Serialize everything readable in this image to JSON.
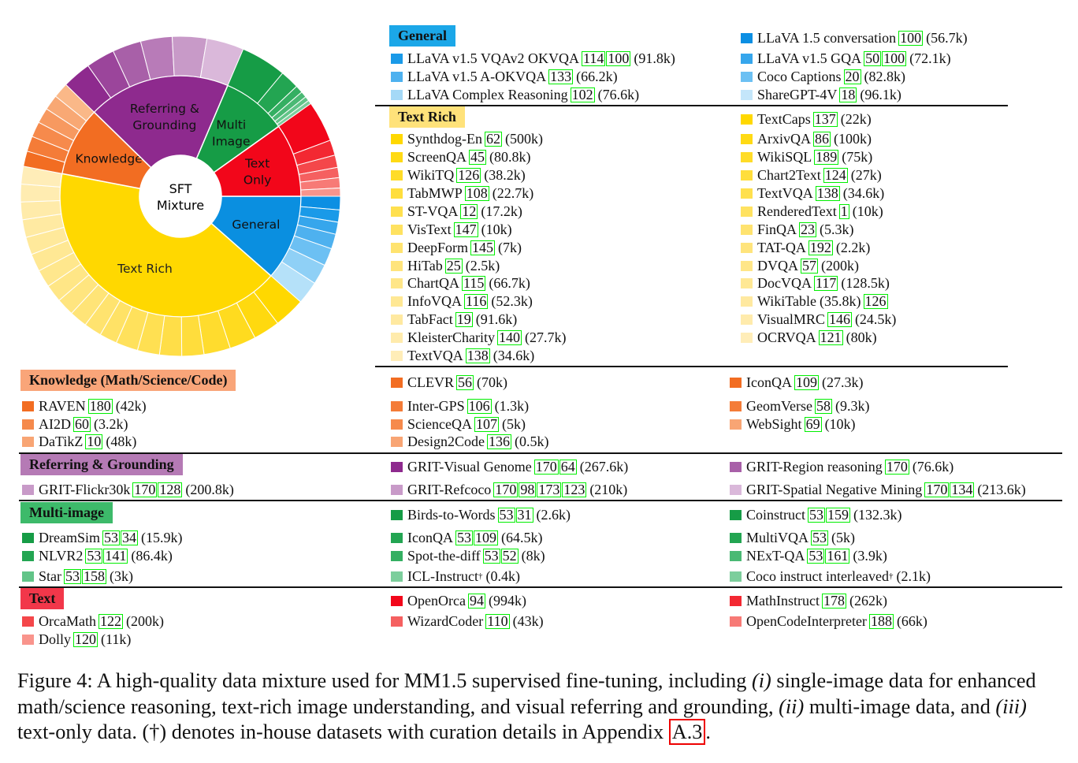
{
  "chart_data": {
    "type": "sunburst",
    "center_label": [
      "SFT",
      "Mixture"
    ],
    "inner": [
      {
        "name": "General",
        "label": [
          "General"
        ],
        "value": 10.5,
        "color": "#0a8fe0"
      },
      {
        "name": "Text Rich",
        "label": [
          "Text Rich"
        ],
        "value": 38,
        "color": "#ffd800"
      },
      {
        "name": "Knowledge",
        "label": [
          "Knowledge"
        ],
        "value": 8.5,
        "color": "#f26d22"
      },
      {
        "name": "Referring & Grounding",
        "label": [
          "Referring &",
          "Grounding"
        ],
        "value": 17.5,
        "color": "#8e2a8e"
      },
      {
        "name": "Multi Image",
        "label": [
          "Multi",
          "Image"
        ],
        "value": 8,
        "color": "#169c46"
      },
      {
        "name": "Text Only",
        "label": [
          "Text",
          "Only"
        ],
        "value": 9,
        "color": "#f2061a"
      }
    ],
    "outer": [
      {
        "parent": "General",
        "slices": [
          {
            "v": 10,
            "c": "#0c8fe3"
          },
          {
            "v": 9,
            "c": "#1a9ae8"
          },
          {
            "v": 9,
            "c": "#36a6ec"
          },
          {
            "v": 11,
            "c": "#4eb1ef"
          },
          {
            "v": 13,
            "c": "#6cc0f3"
          },
          {
            "v": 15,
            "c": "#8fd0f6"
          },
          {
            "v": 17,
            "c": "#b5e1f9"
          }
        ]
      },
      {
        "parent": "Text Rich",
        "slices": [
          {
            "v": 3.5,
            "c": "#ffd800"
          },
          {
            "v": 3,
            "c": "#ffd90f"
          },
          {
            "v": 3,
            "c": "#ffdb1f"
          },
          {
            "v": 3,
            "c": "#ffdc2e"
          },
          {
            "v": 2.5,
            "c": "#ffdd3c"
          },
          {
            "v": 2.5,
            "c": "#ffde48"
          },
          {
            "v": 2.5,
            "c": "#ffe052"
          },
          {
            "v": 2.5,
            "c": "#ffe15c"
          },
          {
            "v": 2,
            "c": "#ffe266"
          },
          {
            "v": 2,
            "c": "#ffe36f"
          },
          {
            "v": 2,
            "c": "#ffe477"
          },
          {
            "v": 2,
            "c": "#ffe57f"
          },
          {
            "v": 2,
            "c": "#ffe686"
          },
          {
            "v": 2,
            "c": "#ffe78d"
          },
          {
            "v": 2,
            "c": "#ffe894"
          },
          {
            "v": 2,
            "c": "#ffe99b"
          },
          {
            "v": 2,
            "c": "#ffeaa2"
          },
          {
            "v": 2,
            "c": "#ffebaa"
          },
          {
            "v": 2,
            "c": "#ffecb1"
          },
          {
            "v": 2,
            "c": "#ffedb8"
          }
        ]
      },
      {
        "parent": "Knowledge",
        "slices": [
          {
            "v": 1,
            "c": "#f26d22"
          },
          {
            "v": 1,
            "c": "#f47c38"
          },
          {
            "v": 1,
            "c": "#f68a4c"
          },
          {
            "v": 1,
            "c": "#f79960"
          },
          {
            "v": 1,
            "c": "#f8a874"
          },
          {
            "v": 1,
            "c": "#fab888"
          }
        ]
      },
      {
        "parent": "Referring & Grounding",
        "slices": [
          {
            "v": 1,
            "c": "#8e2a8e"
          },
          {
            "v": 1,
            "c": "#9b459b"
          },
          {
            "v": 1,
            "c": "#a860a8"
          },
          {
            "v": 1.1,
            "c": "#b87bb8"
          },
          {
            "v": 1.2,
            "c": "#c89ac8"
          },
          {
            "v": 1.3,
            "c": "#dab8da"
          }
        ]
      },
      {
        "parent": "Multi Image",
        "slices": [
          {
            "v": 6,
            "c": "#169c46"
          },
          {
            "v": 2.5,
            "c": "#23a552"
          },
          {
            "v": 1,
            "c": "#34af62"
          },
          {
            "v": 0.8,
            "c": "#4ab974"
          },
          {
            "v": 0.6,
            "c": "#62c488"
          },
          {
            "v": 0.5,
            "c": "#7cce9c"
          }
        ]
      },
      {
        "parent": "Text Only",
        "slices": [
          {
            "v": 4,
            "c": "#f2061a"
          },
          {
            "v": 1.5,
            "c": "#f32832"
          },
          {
            "v": 1.2,
            "c": "#f4474a"
          },
          {
            "v": 1,
            "c": "#f56060"
          },
          {
            "v": 1,
            "c": "#f77a76"
          },
          {
            "v": 0.8,
            "c": "#f9948c"
          }
        ]
      }
    ]
  },
  "sections": {
    "general": {
      "header": "General",
      "header_color": "#1ba7e8",
      "items": [
        {
          "sw": "#1a9ae8",
          "name": "LLaVA v1.5 VQAv2 OKVQA",
          "cites": [
            "114",
            "100"
          ],
          "size": "(91.8k)"
        },
        {
          "sw": "#4eb1ef",
          "name": "LLaVA v1.5 A-OKVQA",
          "cites": [
            "133"
          ],
          "size": "(66.2k)"
        },
        {
          "sw": "#a5d9f7",
          "name": "LLaVA Complex Reasoning",
          "cites": [
            "102"
          ],
          "size": "(76.6k)"
        },
        {
          "sw": "#0c8fe3",
          "name": "LLaVA 1.5 conversation",
          "cites": [
            "100"
          ],
          "size": "(56.7k)"
        },
        {
          "sw": "#36a6ec",
          "name": "LLaVA v1.5 GQA",
          "cites": [
            "50",
            "100"
          ],
          "size": "(72.1k)"
        },
        {
          "sw": "#6cc0f3",
          "name": "Coco Captions",
          "cites": [
            "20"
          ],
          "size": "(82.8k)"
        },
        {
          "sw": "#c4e6fa",
          "name": "ShareGPT-4V",
          "cites": [
            "18"
          ],
          "size": "(96.1k)"
        }
      ]
    },
    "text_rich": {
      "header": "Text Rich",
      "header_color": "#ffe27a",
      "items": [
        {
          "sw": "#ffd800",
          "name": "Synthdog-En",
          "cites": [
            "62"
          ],
          "size": "(500k)"
        },
        {
          "sw": "#ffda14",
          "name": "ScreenQA",
          "cites": [
            "45"
          ],
          "size": "(80.8k)"
        },
        {
          "sw": "#ffdc28",
          "name": "WikiTQ",
          "cites": [
            "126"
          ],
          "size": "(38.2k)"
        },
        {
          "sw": "#ffde3c",
          "name": "TabMWP",
          "cites": [
            "108"
          ],
          "size": "(22.7k)"
        },
        {
          "sw": "#ffe04e",
          "name": "ST-VQA",
          "cites": [
            "12"
          ],
          "size": "(17.2k)"
        },
        {
          "sw": "#ffe260",
          "name": "VisText",
          "cites": [
            "147"
          ],
          "size": "(10k)"
        },
        {
          "sw": "#ffe36f",
          "name": "DeepForm",
          "cites": [
            "145"
          ],
          "size": "(7k)"
        },
        {
          "sw": "#ffe47c",
          "name": "HiTab",
          "cites": [
            "25"
          ],
          "size": "(2.5k)"
        },
        {
          "sw": "#ffe688",
          "name": "ChartQA",
          "cites": [
            "115"
          ],
          "size": "(66.7k)"
        },
        {
          "sw": "#ffe894",
          "name": "InfoVQA",
          "cites": [
            "116"
          ],
          "size": "(52.3k)"
        },
        {
          "sw": "#ffe9a0",
          "name": "TabFact",
          "cites": [
            "19"
          ],
          "size": "(91.6k)"
        },
        {
          "sw": "#ffebac",
          "name": "KleisterCharity",
          "cites": [
            "140"
          ],
          "size": "(27.7k)"
        },
        {
          "sw": "#ffedb8",
          "name": "TextVQA",
          "cites": [
            "138"
          ],
          "size": "(34.6k)"
        },
        {
          "sw": "#ffd800",
          "name": "TextCaps",
          "cites": [
            "137"
          ],
          "size": "(22k)"
        },
        {
          "sw": "#ffda14",
          "name": "ArxivQA",
          "cites": [
            "86"
          ],
          "size": "(100k)"
        },
        {
          "sw": "#ffdc28",
          "name": "WikiSQL",
          "cites": [
            "189"
          ],
          "size": "(75k)"
        },
        {
          "sw": "#ffde3c",
          "name": "Chart2Text",
          "cites": [
            "124"
          ],
          "size": "(27k)"
        },
        {
          "sw": "#ffe04e",
          "name": "TextVQA",
          "cites": [
            "138"
          ],
          "size": "(34.6k)"
        },
        {
          "sw": "#ffe260",
          "name": "RenderedText",
          "cites": [
            "1"
          ],
          "size": "(10k)"
        },
        {
          "sw": "#ffe36f",
          "name": "FinQA",
          "cites": [
            "23"
          ],
          "size": "(5.3k)"
        },
        {
          "sw": "#ffe47c",
          "name": "TAT-QA",
          "cites": [
            "192"
          ],
          "size": "(2.2k)"
        },
        {
          "sw": "#ffe688",
          "name": "DVQA",
          "cites": [
            "57"
          ],
          "size": "(200k)"
        },
        {
          "sw": "#ffe894",
          "name": "DocVQA",
          "cites": [
            "117"
          ],
          "size": "(128.5k)"
        },
        {
          "sw": "#ffe9a0",
          "name": "WikiTable",
          "size": "(35.8k)",
          "cites_after": [
            "126"
          ]
        },
        {
          "sw": "#ffebac",
          "name": "VisualMRC",
          "cites": [
            "146"
          ],
          "size": "(24.5k)"
        },
        {
          "sw": "#ffedb8",
          "name": "OCRVQA",
          "cites": [
            "121"
          ],
          "size": "(80k)"
        }
      ]
    },
    "knowledge": {
      "header": "Knowledge (Math/Science/Code)",
      "header_color": "#f9a579",
      "items": [
        {
          "sw": "#f26d22",
          "name": "RAVEN",
          "cites": [
            "180"
          ],
          "size": "(42k)"
        },
        {
          "sw": "#f58a4c",
          "name": "AI2D",
          "cites": [
            "60"
          ],
          "size": "(3.2k)"
        },
        {
          "sw": "#f8a574",
          "name": "DaTikZ",
          "cites": [
            "10"
          ],
          "size": "(48k)"
        },
        {
          "sw": "#f26d22",
          "name": "CLEVR",
          "cites": [
            "56"
          ],
          "size": "(70k)"
        },
        {
          "sw": "#f47c38",
          "name": "Inter-GPS",
          "cites": [
            "106"
          ],
          "size": "(1.3k)"
        },
        {
          "sw": "#f68a4c",
          "name": "ScienceQA",
          "cites": [
            "107"
          ],
          "size": "(5k)"
        },
        {
          "sw": "#f8a574",
          "name": "Design2Code",
          "cites": [
            "136"
          ],
          "size": "(0.5k)"
        },
        {
          "sw": "#f26d22",
          "name": "IconQA",
          "cites": [
            "109"
          ],
          "size": "(27.3k)"
        },
        {
          "sw": "#f47c38",
          "name": "GeomVerse",
          "cites": [
            "58"
          ],
          "size": "(9.3k)"
        },
        {
          "sw": "#f8a574",
          "name": "WebSight",
          "cites": [
            "69"
          ],
          "size": "(10k)"
        }
      ]
    },
    "referring": {
      "header": "Referring & Grounding",
      "header_color": "#b57ab5",
      "items": [
        {
          "sw": "#c89ac8",
          "name": "GRIT-Flickr30k",
          "cites": [
            "170",
            "128"
          ],
          "size": "(200.8k)"
        },
        {
          "sw": "#8e2a8e",
          "name": "GRIT-Visual Genome",
          "cites": [
            "170",
            "64"
          ],
          "size": "(267.6k)"
        },
        {
          "sw": "#c89ac8",
          "name": "GRIT-Refcoco",
          "cites": [
            "170",
            "98",
            "173",
            "123"
          ],
          "size": "(210k)"
        },
        {
          "sw": "#a860a8",
          "name": "GRIT-Region reasoning",
          "cites": [
            "170"
          ],
          "size": "(76.6k)"
        },
        {
          "sw": "#dab8da",
          "name": "GRIT-Spatial Negative Mining",
          "cites": [
            "170",
            "134"
          ],
          "size": "(213.6k)"
        }
      ]
    },
    "multi_image": {
      "header": "Multi-image",
      "header_color": "#3dba6a",
      "items": [
        {
          "sw": "#169c46",
          "name": "DreamSim",
          "cites": [
            "53",
            "34"
          ],
          "size": "(15.9k)"
        },
        {
          "sw": "#23a552",
          "name": "NLVR2",
          "cites": [
            "53",
            "141"
          ],
          "size": "(86.4k)"
        },
        {
          "sw": "#62c488",
          "name": "Star",
          "cites": [
            "53",
            "158"
          ],
          "size": "(3k)"
        },
        {
          "sw": "#169c46",
          "name": "Birds-to-Words",
          "cites": [
            "53",
            "31"
          ],
          "size": "(2.6k)"
        },
        {
          "sw": "#23a552",
          "name": "IconQA",
          "cites": [
            "53",
            "109"
          ],
          "size": "(64.5k)"
        },
        {
          "sw": "#34af62",
          "name": "Spot-the-diff",
          "cites": [
            "53",
            "52"
          ],
          "size": "(8k)"
        },
        {
          "sw": "#7cce9c",
          "name": "ICL-Instruct",
          "dagger": "†",
          "size": "(0.4k)"
        },
        {
          "sw": "#169c46",
          "name": "Coinstruct",
          "cites": [
            "53",
            "159"
          ],
          "size": "(132.3k)"
        },
        {
          "sw": "#23a552",
          "name": "MultiVQA",
          "cites": [
            "53"
          ],
          "size": "(5k)"
        },
        {
          "sw": "#4ab974",
          "name": "NExT-QA",
          "cites": [
            "53",
            "161"
          ],
          "size": "(3.9k)"
        },
        {
          "sw": "#7cce9c",
          "name": "Coco instruct interleaved",
          "dagger": "†",
          "size": "(2.1k)"
        }
      ]
    },
    "text": {
      "header": "Text",
      "header_color": "#f2374a",
      "items": [
        {
          "sw": "#f4474a",
          "name": "OrcaMath",
          "cites": [
            "122"
          ],
          "size": "(200k)"
        },
        {
          "sw": "#f9948c",
          "name": "Dolly",
          "cites": [
            "120"
          ],
          "size": "(11k)"
        },
        {
          "sw": "#f2061a",
          "name": "OpenOrca",
          "cites": [
            "94"
          ],
          "size": "(994k)"
        },
        {
          "sw": "#f56060",
          "name": "WizardCoder",
          "cites": [
            "110"
          ],
          "size": "(43k)"
        },
        {
          "sw": "#f32832",
          "name": "MathInstruct",
          "cites": [
            "178"
          ],
          "size": "(262k)"
        },
        {
          "sw": "#f77a76",
          "name": "OpenCodeInterpreter",
          "cites": [
            "188"
          ],
          "size": "(66k)"
        }
      ]
    }
  },
  "caption": {
    "prefix": "Figure 4: A high-quality data mixture used for MM1.5 supervised fine-tuning, including ",
    "i": "(i)",
    "mid1": " single-image data for enhanced math/science reasoning, text-rich image understanding, and visual referring and grounding, ",
    "ii": "(ii)",
    "mid2": " multi-image data, and ",
    "iii": "(iii)",
    "mid3": " text-only data. (†) denotes in-house datasets with curation details in Appendix ",
    "appendix": "A.3",
    "end": "."
  }
}
